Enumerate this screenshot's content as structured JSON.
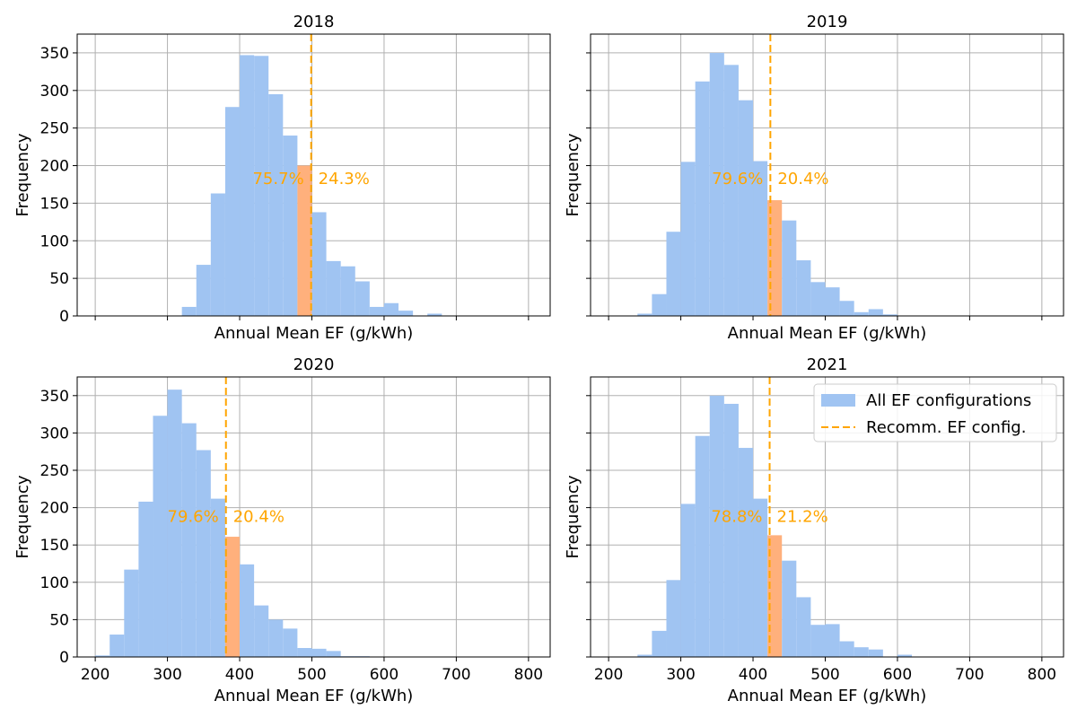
{
  "figure": {
    "colors": {
      "bar": "#a0c4f2",
      "highlight": "#ffb07c",
      "line": "#ffa500",
      "grid": "#b0b0b0",
      "annotation": "#ffa500"
    },
    "legend": {
      "entries": [
        "All EF configurations",
        "Recomm. EF config."
      ],
      "placement": "upper-right of 2021 panel"
    }
  },
  "chart_data": [
    {
      "type": "bar",
      "title": "2018",
      "xlabel": "Annual Mean EF (g/kWh)",
      "ylabel": "Frequency",
      "xlim": [
        175,
        830
      ],
      "ylim": [
        0,
        375
      ],
      "xticks": [
        200,
        300,
        400,
        500,
        600,
        700,
        800
      ],
      "yticks": [
        0,
        50,
        100,
        150,
        200,
        250,
        300,
        350
      ],
      "show_xtick_labels": false,
      "bin_edges": [
        320,
        340,
        360,
        380,
        400,
        420,
        440,
        460,
        480,
        500,
        520,
        540,
        560,
        580,
        600,
        620,
        640,
        660,
        680
      ],
      "counts": [
        12,
        68,
        163,
        278,
        347,
        346,
        295,
        240,
        200,
        138,
        73,
        66,
        46,
        12,
        17,
        7,
        0,
        3
      ],
      "highlight_bin": 8,
      "line_x": 499,
      "pct_left": "75.7%",
      "pct_right": "24.3%",
      "pct_y": 183
    },
    {
      "type": "bar",
      "title": "2019",
      "xlabel": "Annual Mean EF (g/kWh)",
      "ylabel": "Frequency",
      "xlim": [
        175,
        830
      ],
      "ylim": [
        0,
        375
      ],
      "xticks": [
        200,
        300,
        400,
        500,
        600,
        700,
        800
      ],
      "yticks": [
        0,
        50,
        100,
        150,
        200,
        250,
        300,
        350
      ],
      "show_xtick_labels": false,
      "bin_edges": [
        240,
        260,
        280,
        300,
        320,
        340,
        360,
        380,
        400,
        420,
        440,
        460,
        480,
        500,
        520,
        540,
        560,
        580,
        600
      ],
      "counts": [
        3,
        29,
        112,
        205,
        312,
        350,
        334,
        287,
        206,
        154,
        127,
        74,
        45,
        38,
        20,
        5,
        9,
        2
      ],
      "highlight_bin": 9,
      "line_x": 424,
      "pct_left": "79.6%",
      "pct_right": "20.4%",
      "pct_y": 183
    },
    {
      "type": "bar",
      "title": "2020",
      "xlabel": "Annual Mean EF (g/kWh)",
      "ylabel": "Frequency",
      "xlim": [
        175,
        830
      ],
      "ylim": [
        0,
        375
      ],
      "xticks": [
        200,
        300,
        400,
        500,
        600,
        700,
        800
      ],
      "yticks": [
        0,
        50,
        100,
        150,
        200,
        250,
        300,
        350
      ],
      "show_xtick_labels": true,
      "bin_edges": [
        200,
        220,
        240,
        260,
        280,
        300,
        320,
        340,
        360,
        380,
        400,
        420,
        440,
        460,
        480,
        500,
        520,
        540,
        560,
        580
      ],
      "counts": [
        2,
        30,
        117,
        208,
        323,
        358,
        313,
        277,
        212,
        161,
        124,
        69,
        50,
        38,
        12,
        11,
        8,
        1,
        1
      ],
      "highlight_bin": 9,
      "line_x": 381,
      "pct_left": "79.6%",
      "pct_right": "20.4%",
      "pct_y": 188
    },
    {
      "type": "bar",
      "title": "2021",
      "xlabel": "Annual Mean EF (g/kWh)",
      "ylabel": "Frequency",
      "xlim": [
        175,
        830
      ],
      "ylim": [
        0,
        375
      ],
      "xticks": [
        200,
        300,
        400,
        500,
        600,
        700,
        800
      ],
      "yticks": [
        0,
        50,
        100,
        150,
        200,
        250,
        300,
        350
      ],
      "show_xtick_labels": true,
      "bin_edges": [
        240,
        260,
        280,
        300,
        320,
        340,
        360,
        380,
        400,
        420,
        440,
        460,
        480,
        500,
        520,
        540,
        560,
        580,
        600,
        620
      ],
      "counts": [
        3,
        35,
        103,
        205,
        296,
        350,
        339,
        280,
        212,
        163,
        129,
        80,
        43,
        44,
        21,
        13,
        10,
        0,
        3
      ],
      "highlight_bin": 9,
      "line_x": 423,
      "pct_left": "78.8%",
      "pct_right": "21.2%",
      "pct_y": 188
    }
  ]
}
